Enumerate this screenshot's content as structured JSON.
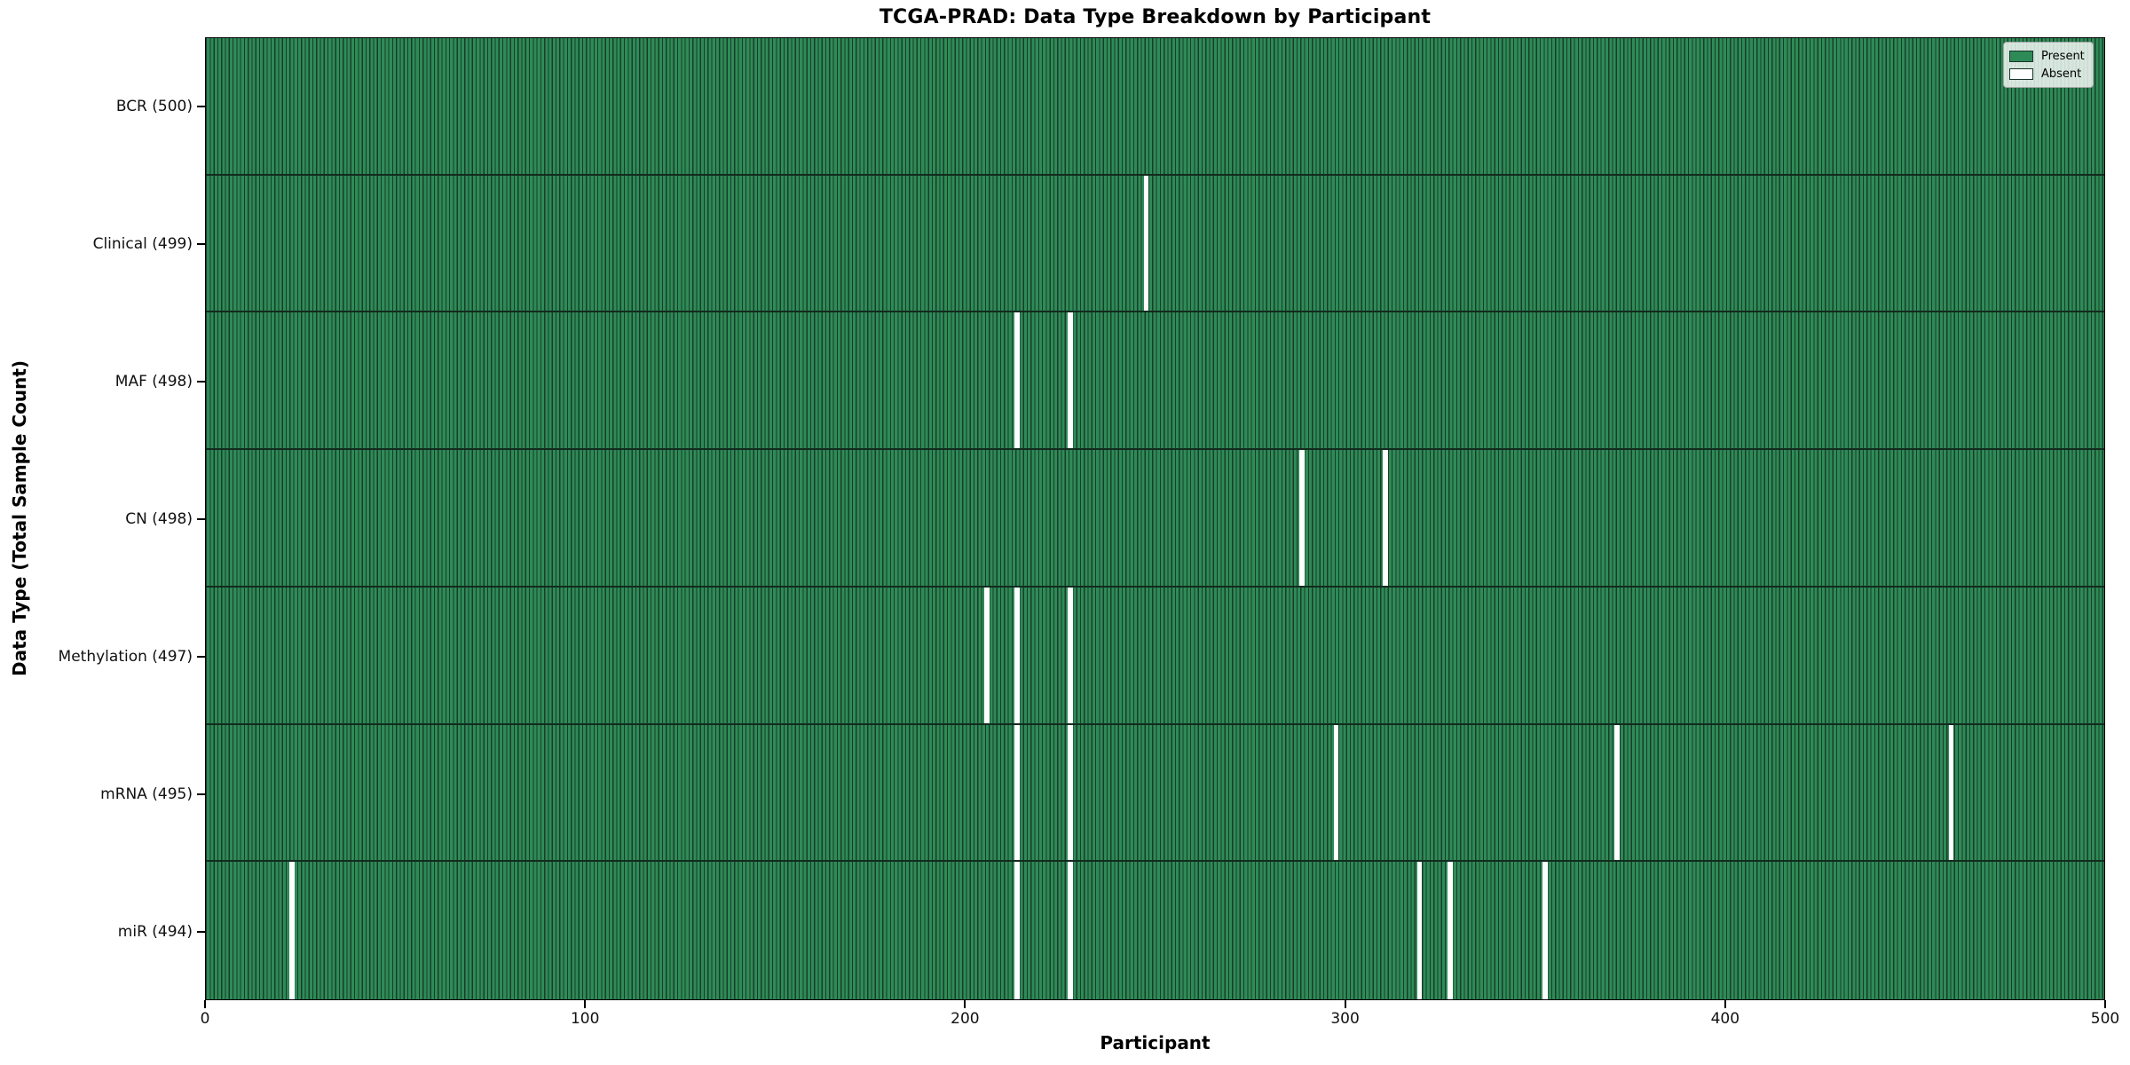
{
  "chart_data": {
    "type": "heatmap",
    "title": "TCGA-PRAD: Data Type Breakdown by Participant",
    "xlabel": "Participant",
    "ylabel": "Data Type (Total Sample Count)",
    "x_range": [
      0,
      500
    ],
    "x_ticks": [
      0,
      100,
      200,
      300,
      400,
      500
    ],
    "n_participants": 500,
    "grid": false,
    "legend_position": "upper right",
    "legend": [
      {
        "label": "Present",
        "color": "#2E8B57"
      },
      {
        "label": "Absent",
        "color": "#ffffff"
      }
    ],
    "colors": {
      "present": "#2E8B57",
      "absent": "#ffffff",
      "cell_edge": "#1a3c2a"
    },
    "rows": [
      {
        "name": "BCR",
        "label": "BCR (500)",
        "total_samples": 500,
        "absent_participants": []
      },
      {
        "name": "Clinical",
        "label": "Clinical (499)",
        "total_samples": 499,
        "absent_participants": [
          247
        ]
      },
      {
        "name": "MAF",
        "label": "MAF (498)",
        "total_samples": 498,
        "absent_participants": [
          213,
          227
        ]
      },
      {
        "name": "CN",
        "label": "CN (498)",
        "total_samples": 498,
        "absent_participants": [
          288,
          310
        ]
      },
      {
        "name": "Methylation",
        "label": "Methylation (497)",
        "total_samples": 497,
        "absent_participants": [
          205,
          213,
          227
        ]
      },
      {
        "name": "mRNA",
        "label": "mRNA (495)",
        "total_samples": 495,
        "absent_participants": [
          213,
          227,
          297,
          371,
          459
        ]
      },
      {
        "name": "miR",
        "label": "miR (494)",
        "total_samples": 494,
        "absent_participants": [
          22,
          213,
          227,
          319,
          327,
          352
        ]
      }
    ]
  }
}
